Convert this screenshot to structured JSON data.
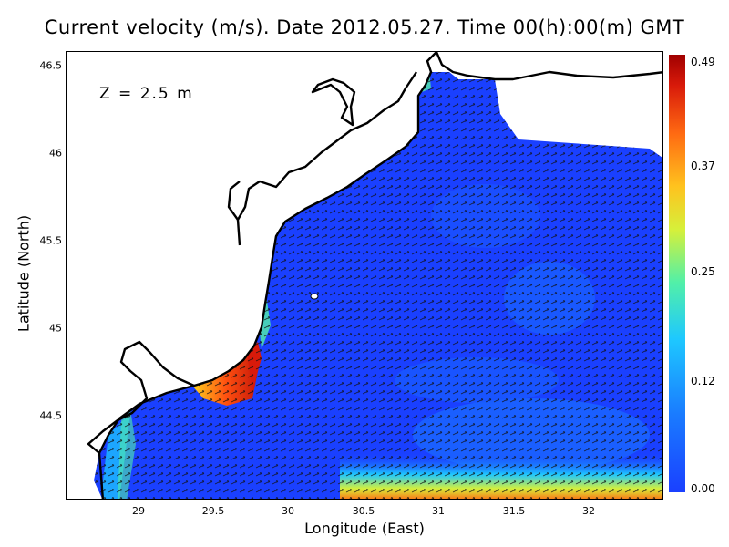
{
  "title": "Current velocity (m/s). Date 2012.05.27. Time 00(h):00(m) GMT",
  "depth_label": "Z = 2.5 m",
  "x_axis": {
    "label": "Longitude (East)",
    "ticks": [
      "29",
      "29.5",
      "30",
      "30.5",
      "31",
      "31.5",
      "32"
    ]
  },
  "y_axis": {
    "label": "Latitude (North)",
    "ticks": [
      "46.5",
      "46",
      "45.5",
      "45",
      "44.5"
    ]
  },
  "colorbar": {
    "ticks": [
      "0.49",
      "0.37",
      "0.25",
      "0.12",
      "0.00"
    ],
    "colors": [
      "#1a40ff",
      "#1ec8ff",
      "#52f0a8",
      "#ffc21e",
      "#ff6a12",
      "#a00000"
    ]
  },
  "colors": {
    "water": "#1a40ff",
    "land": "#ffffff",
    "coast": "#000000"
  }
}
